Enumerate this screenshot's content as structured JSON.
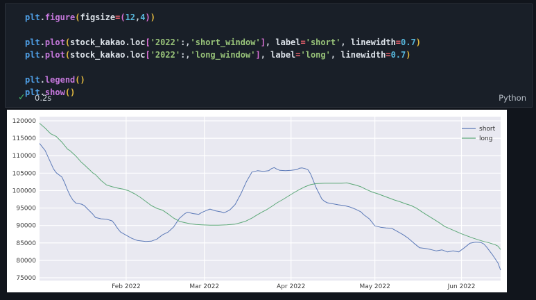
{
  "editor": {
    "language_label": "Python",
    "execution": {
      "check_glyph": "✓",
      "time": "0.2s"
    },
    "code_lines": [
      {
        "tokens": [
          {
            "t": "mod",
            "v": "plt"
          },
          {
            "t": "punct",
            "v": "."
          },
          {
            "t": "fn",
            "v": "figure"
          },
          {
            "t": "br1",
            "v": "("
          },
          {
            "t": "id",
            "v": "figsize"
          },
          {
            "t": "op",
            "v": "="
          },
          {
            "t": "br2",
            "v": "("
          },
          {
            "t": "num",
            "v": "12"
          },
          {
            "t": "punct",
            "v": ","
          },
          {
            "t": "num",
            "v": "4"
          },
          {
            "t": "br2",
            "v": ")"
          },
          {
            "t": "br1",
            "v": ")"
          }
        ]
      },
      {
        "tokens": []
      },
      {
        "tokens": [
          {
            "t": "mod",
            "v": "plt"
          },
          {
            "t": "punct",
            "v": "."
          },
          {
            "t": "fn",
            "v": "plot"
          },
          {
            "t": "br1",
            "v": "("
          },
          {
            "t": "id",
            "v": "stock_kakao"
          },
          {
            "t": "punct",
            "v": "."
          },
          {
            "t": "id",
            "v": "loc"
          },
          {
            "t": "br2",
            "v": "["
          },
          {
            "t": "str",
            "v": "'2022'"
          },
          {
            "t": "punct",
            "v": ":"
          },
          {
            "t": "punct",
            "v": ","
          },
          {
            "t": "str",
            "v": "'short_window'"
          },
          {
            "t": "br2",
            "v": "]"
          },
          {
            "t": "punct",
            "v": ", "
          },
          {
            "t": "id",
            "v": "label"
          },
          {
            "t": "op",
            "v": "="
          },
          {
            "t": "str",
            "v": "'short'"
          },
          {
            "t": "punct",
            "v": ", "
          },
          {
            "t": "id",
            "v": "linewidth"
          },
          {
            "t": "op",
            "v": "="
          },
          {
            "t": "num",
            "v": "0.7"
          },
          {
            "t": "br1",
            "v": ")"
          }
        ]
      },
      {
        "tokens": [
          {
            "t": "mod",
            "v": "plt"
          },
          {
            "t": "punct",
            "v": "."
          },
          {
            "t": "fn",
            "v": "plot"
          },
          {
            "t": "br1",
            "v": "("
          },
          {
            "t": "id",
            "v": "stock_kakao"
          },
          {
            "t": "punct",
            "v": "."
          },
          {
            "t": "id",
            "v": "loc"
          },
          {
            "t": "br2",
            "v": "["
          },
          {
            "t": "str",
            "v": "'2022'"
          },
          {
            "t": "punct",
            "v": ":"
          },
          {
            "t": "punct",
            "v": ","
          },
          {
            "t": "str",
            "v": "'long_window'"
          },
          {
            "t": "br2",
            "v": "]"
          },
          {
            "t": "punct",
            "v": ", "
          },
          {
            "t": "id",
            "v": "label"
          },
          {
            "t": "op",
            "v": "="
          },
          {
            "t": "str",
            "v": "'long'"
          },
          {
            "t": "punct",
            "v": ", "
          },
          {
            "t": "id",
            "v": "linewidth"
          },
          {
            "t": "op",
            "v": "="
          },
          {
            "t": "num",
            "v": "0.7"
          },
          {
            "t": "br1",
            "v": ")"
          }
        ]
      },
      {
        "tokens": []
      },
      {
        "tokens": [
          {
            "t": "mod",
            "v": "plt"
          },
          {
            "t": "punct",
            "v": "."
          },
          {
            "t": "fn",
            "v": "legend"
          },
          {
            "t": "br1",
            "v": "("
          },
          {
            "t": "br1",
            "v": ")"
          }
        ]
      },
      {
        "tokens": [
          {
            "t": "mod",
            "v": "plt"
          },
          {
            "t": "punct",
            "v": "."
          },
          {
            "t": "fn",
            "v": "show"
          },
          {
            "t": "br1",
            "v": "("
          },
          {
            "t": "br1",
            "v": ")"
          }
        ]
      }
    ]
  },
  "chart_data": {
    "type": "line",
    "title": "",
    "xlabel": "",
    "ylabel": "",
    "x_unit": "days since 2022-01-01",
    "x_max_day": 165,
    "ylim": [
      74200,
      121200
    ],
    "yticks": [
      75000,
      80000,
      85000,
      90000,
      95000,
      100000,
      105000,
      110000,
      115000,
      120000
    ],
    "xticks": [
      {
        "day": 31,
        "label": "Feb 2022"
      },
      {
        "day": 59,
        "label": "Mar 2022"
      },
      {
        "day": 90,
        "label": "Apr 2022"
      },
      {
        "day": 120,
        "label": "May 2022"
      },
      {
        "day": 151,
        "label": "Jun 2022"
      }
    ],
    "grid": true,
    "plot_background": "#e9e9f1",
    "grid_color": "#ffffff",
    "tick_color": "#3b3b3b",
    "legend": {
      "position": "upper right"
    },
    "series": [
      {
        "name": "short",
        "color": "#5b79b7",
        "points": [
          [
            0,
            113500
          ],
          [
            2,
            111500
          ],
          [
            4,
            108000
          ],
          [
            5,
            106200
          ],
          [
            6,
            105100
          ],
          [
            8,
            103900
          ],
          [
            9,
            102200
          ],
          [
            10,
            100200
          ],
          [
            11,
            98500
          ],
          [
            12,
            97200
          ],
          [
            13,
            96400
          ],
          [
            15,
            96100
          ],
          [
            16,
            95700
          ],
          [
            17,
            94900
          ],
          [
            19,
            93300
          ],
          [
            20,
            92300
          ],
          [
            22,
            91900
          ],
          [
            24,
            91800
          ],
          [
            26,
            91300
          ],
          [
            27,
            90300
          ],
          [
            28,
            89100
          ],
          [
            29,
            88100
          ],
          [
            31,
            87200
          ],
          [
            33,
            86300
          ],
          [
            35,
            85700
          ],
          [
            38,
            85400
          ],
          [
            40,
            85500
          ],
          [
            42,
            86100
          ],
          [
            44,
            87300
          ],
          [
            46,
            88100
          ],
          [
            48,
            89600
          ],
          [
            50,
            92000
          ],
          [
            52,
            93400
          ],
          [
            53,
            93800
          ],
          [
            55,
            93400
          ],
          [
            57,
            93200
          ],
          [
            58,
            93700
          ],
          [
            60,
            94400
          ],
          [
            61,
            94700
          ],
          [
            63,
            94200
          ],
          [
            65,
            93900
          ],
          [
            66,
            93600
          ],
          [
            68,
            94400
          ],
          [
            69,
            95200
          ],
          [
            70,
            96000
          ],
          [
            72,
            99000
          ],
          [
            74,
            102500
          ],
          [
            76,
            105300
          ],
          [
            78,
            105700
          ],
          [
            80,
            105500
          ],
          [
            82,
            105700
          ],
          [
            83,
            106300
          ],
          [
            84,
            106600
          ],
          [
            85,
            106100
          ],
          [
            86,
            105800
          ],
          [
            88,
            105700
          ],
          [
            90,
            105800
          ],
          [
            92,
            106000
          ],
          [
            93,
            106400
          ],
          [
            94,
            106500
          ],
          [
            95,
            106300
          ],
          [
            96,
            106000
          ],
          [
            97,
            104800
          ],
          [
            98,
            102800
          ],
          [
            99,
            100800
          ],
          [
            101,
            97600
          ],
          [
            102,
            96900
          ],
          [
            103,
            96500
          ],
          [
            105,
            96200
          ],
          [
            107,
            95900
          ],
          [
            109,
            95700
          ],
          [
            111,
            95300
          ],
          [
            113,
            94700
          ],
          [
            115,
            93900
          ],
          [
            116,
            93100
          ],
          [
            118,
            91900
          ],
          [
            120,
            89900
          ],
          [
            122,
            89500
          ],
          [
            124,
            89300
          ],
          [
            126,
            89200
          ],
          [
            128,
            88300
          ],
          [
            130,
            87400
          ],
          [
            132,
            86300
          ],
          [
            134,
            84900
          ],
          [
            136,
            83600
          ],
          [
            138,
            83400
          ],
          [
            140,
            83100
          ],
          [
            142,
            82700
          ],
          [
            144,
            83000
          ],
          [
            146,
            82400
          ],
          [
            148,
            82700
          ],
          [
            150,
            82400
          ],
          [
            152,
            83600
          ],
          [
            154,
            84900
          ],
          [
            156,
            85200
          ],
          [
            158,
            85100
          ],
          [
            159,
            84700
          ],
          [
            160,
            83800
          ],
          [
            162,
            81700
          ],
          [
            164,
            79300
          ],
          [
            165,
            77200
          ]
        ]
      },
      {
        "name": "long",
        "color": "#5ca877",
        "points": [
          [
            0,
            119300
          ],
          [
            2,
            117900
          ],
          [
            4,
            116300
          ],
          [
            6,
            115500
          ],
          [
            8,
            113900
          ],
          [
            10,
            111900
          ],
          [
            11,
            111400
          ],
          [
            13,
            109900
          ],
          [
            15,
            108100
          ],
          [
            16,
            107400
          ],
          [
            18,
            105900
          ],
          [
            19,
            105100
          ],
          [
            20,
            104600
          ],
          [
            22,
            102900
          ],
          [
            24,
            101600
          ],
          [
            26,
            101100
          ],
          [
            28,
            100700
          ],
          [
            30,
            100400
          ],
          [
            32,
            99900
          ],
          [
            34,
            99100
          ],
          [
            36,
            98100
          ],
          [
            38,
            96900
          ],
          [
            40,
            95700
          ],
          [
            42,
            94900
          ],
          [
            44,
            94400
          ],
          [
            46,
            93300
          ],
          [
            48,
            92100
          ],
          [
            50,
            91200
          ],
          [
            52,
            90800
          ],
          [
            54,
            90500
          ],
          [
            56,
            90300
          ],
          [
            58,
            90200
          ],
          [
            61,
            90100
          ],
          [
            64,
            90100
          ],
          [
            67,
            90200
          ],
          [
            70,
            90400
          ],
          [
            72,
            90800
          ],
          [
            74,
            91300
          ],
          [
            76,
            92100
          ],
          [
            78,
            93100
          ],
          [
            80,
            94000
          ],
          [
            81,
            94400
          ],
          [
            83,
            95400
          ],
          [
            85,
            96500
          ],
          [
            87,
            97400
          ],
          [
            89,
            98400
          ],
          [
            91,
            99400
          ],
          [
            93,
            100300
          ],
          [
            95,
            101100
          ],
          [
            97,
            101700
          ],
          [
            99,
            102000
          ],
          [
            102,
            102100
          ],
          [
            105,
            102100
          ],
          [
            108,
            102100
          ],
          [
            110,
            102200
          ],
          [
            111,
            102000
          ],
          [
            113,
            101600
          ],
          [
            115,
            101100
          ],
          [
            117,
            100300
          ],
          [
            119,
            99600
          ],
          [
            121,
            99100
          ],
          [
            123,
            98500
          ],
          [
            125,
            97900
          ],
          [
            127,
            97300
          ],
          [
            129,
            96800
          ],
          [
            131,
            96200
          ],
          [
            133,
            95700
          ],
          [
            135,
            94900
          ],
          [
            137,
            93800
          ],
          [
            139,
            92800
          ],
          [
            141,
            91800
          ],
          [
            143,
            90800
          ],
          [
            145,
            89700
          ],
          [
            147,
            89000
          ],
          [
            149,
            88300
          ],
          [
            151,
            87600
          ],
          [
            153,
            87000
          ],
          [
            155,
            86400
          ],
          [
            157,
            85900
          ],
          [
            159,
            85400
          ],
          [
            161,
            85000
          ],
          [
            163,
            84500
          ],
          [
            164,
            84100
          ],
          [
            165,
            83100
          ]
        ]
      }
    ]
  }
}
